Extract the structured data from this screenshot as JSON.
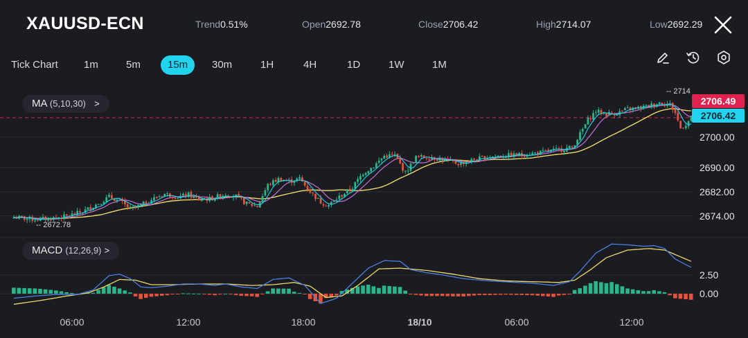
{
  "header": {
    "symbol": "XAUUSD-ECN",
    "stats": [
      {
        "label": "Trend",
        "value": "0.51%"
      },
      {
        "label": "Open",
        "value": "2692.78"
      },
      {
        "label": "Close",
        "value": "2706.42"
      },
      {
        "label": "High",
        "value": "2714.07"
      },
      {
        "label": "Low",
        "value": "2692.29"
      }
    ]
  },
  "timeframes": [
    "Tick Chart",
    "1m",
    "5m",
    "15m",
    "30m",
    "1H",
    "4H",
    "1D",
    "1W",
    "1M"
  ],
  "active_timeframe": "15m",
  "toolbar": {
    "icons": [
      "draw-pencil-icon",
      "history-clock-icon",
      "settings-gear-icon"
    ]
  },
  "indicators": {
    "ma": {
      "name": "MA",
      "params": "(5,10,30)",
      "chevron": ">"
    },
    "macd": {
      "name": "MACD",
      "params": "(12,26,9)",
      "chevron": ">"
    }
  },
  "colors": {
    "up": "#2bb58b",
    "down": "#e5533d",
    "ma5": "#22d3ee",
    "ma10": "#c76fd6",
    "ma30": "#eed96a",
    "macd_line": "#4b7fe0",
    "signal_line": "#eed96a",
    "last_price_bg": "#e0234e",
    "close_price_bg": "#22d3ee",
    "active_tab": "#22d3ee"
  },
  "chart_data": {
    "type": "candlestick",
    "price_axis": {
      "ticks": [
        "2674.00",
        "2682.00",
        "2690.00",
        "2700.00"
      ],
      "ylim": [
        2668,
        2716
      ]
    },
    "macd_axis": {
      "ticks": [
        "0.00",
        "2.50"
      ],
      "ylim": [
        -2.2,
        7.0
      ]
    },
    "time_axis": {
      "ticks": [
        "06:00",
        "12:00",
        "18:00",
        "18/10",
        "06:00",
        "12:00"
      ]
    },
    "price_labels": {
      "last": "2706.49",
      "close": "2706.42"
    },
    "annotations": {
      "low": "2672.78",
      "high": "2714"
    },
    "close_path": [
      [
        0,
        2673.6
      ],
      [
        8,
        2672.8
      ],
      [
        14,
        2673.2
      ],
      [
        20,
        2673.9
      ],
      [
        26,
        2675.4
      ],
      [
        32,
        2678.2
      ],
      [
        36,
        2680.3
      ],
      [
        40,
        2678.9
      ],
      [
        44,
        2676.3
      ],
      [
        48,
        2677.5
      ],
      [
        52,
        2679.4
      ],
      [
        57,
        2681.3
      ],
      [
        62,
        2680.2
      ],
      [
        66,
        2681.0
      ],
      [
        70,
        2679.4
      ],
      [
        74,
        2679.6
      ],
      [
        80,
        2681.2
      ],
      [
        84,
        2680.5
      ],
      [
        88,
        2678.0
      ],
      [
        92,
        2677.2
      ],
      [
        96,
        2684.2
      ],
      [
        100,
        2686.2
      ],
      [
        104,
        2685.4
      ],
      [
        108,
        2686.3
      ],
      [
        112,
        2682.0
      ],
      [
        116,
        2678.5
      ],
      [
        119,
        2677.6
      ],
      [
        123,
        2680.3
      ],
      [
        128,
        2683.4
      ],
      [
        132,
        2688.2
      ],
      [
        136,
        2690.4
      ],
      [
        140,
        2693.8
      ],
      [
        144,
        2694.0
      ],
      [
        148,
        2688.2
      ],
      [
        152,
        2693.4
      ],
      [
        158,
        2693.4
      ],
      [
        164,
        2692.1
      ],
      [
        168,
        2691.3
      ],
      [
        174,
        2692.6
      ],
      [
        180,
        2693.6
      ],
      [
        186,
        2693.9
      ],
      [
        192,
        2694.2
      ],
      [
        198,
        2694.8
      ],
      [
        204,
        2695.6
      ],
      [
        208,
        2696.1
      ],
      [
        211,
        2696.6
      ],
      [
        214,
        2701.0
      ],
      [
        217,
        2705.7
      ],
      [
        220,
        2708.6
      ],
      [
        224,
        2707.6
      ],
      [
        228,
        2708.0
      ],
      [
        232,
        2709.2
      ],
      [
        236,
        2709.6
      ],
      [
        240,
        2710.3
      ],
      [
        244,
        2711.4
      ],
      [
        248,
        2710.8
      ],
      [
        250,
        2708.0
      ],
      [
        252,
        2702.9
      ],
      [
        254,
        2704.2
      ],
      [
        256,
        2706.4
      ]
    ],
    "macd_path": [
      [
        0,
        -0.6
      ],
      [
        8,
        -0.3
      ],
      [
        16,
        -0.1
      ],
      [
        24,
        -0.1
      ],
      [
        30,
        0.5
      ],
      [
        36,
        2.4
      ],
      [
        40,
        2.6
      ],
      [
        44,
        2.0
      ],
      [
        48,
        0.9
      ],
      [
        52,
        0.8
      ],
      [
        58,
        1.0
      ],
      [
        64,
        1.3
      ],
      [
        70,
        1.3
      ],
      [
        76,
        1.1
      ],
      [
        80,
        1.3
      ],
      [
        86,
        0.9
      ],
      [
        92,
        0.7
      ],
      [
        98,
        1.9
      ],
      [
        104,
        2.1
      ],
      [
        110,
        1.1
      ],
      [
        116,
        -1.3
      ],
      [
        122,
        -0.6
      ],
      [
        128,
        1.4
      ],
      [
        134,
        3.4
      ],
      [
        140,
        4.4
      ],
      [
        146,
        4.3
      ],
      [
        150,
        3.2
      ],
      [
        156,
        2.8
      ],
      [
        162,
        2.5
      ],
      [
        170,
        2.0
      ],
      [
        180,
        1.7
      ],
      [
        190,
        1.5
      ],
      [
        196,
        1.4
      ],
      [
        204,
        1.1
      ],
      [
        210,
        1.6
      ],
      [
        214,
        3.0
      ],
      [
        220,
        5.4
      ],
      [
        226,
        6.6
      ],
      [
        232,
        6.5
      ],
      [
        238,
        6.3
      ],
      [
        242,
        6.4
      ],
      [
        246,
        6.0
      ],
      [
        250,
        4.6
      ],
      [
        256,
        3.5
      ]
    ],
    "signal_path": [
      [
        0,
        -1.4
      ],
      [
        10,
        -0.9
      ],
      [
        20,
        -0.3
      ],
      [
        28,
        0.1
      ],
      [
        34,
        0.9
      ],
      [
        40,
        1.9
      ],
      [
        46,
        1.8
      ],
      [
        52,
        1.2
      ],
      [
        60,
        1.2
      ],
      [
        70,
        1.3
      ],
      [
        80,
        1.3
      ],
      [
        90,
        1.1
      ],
      [
        98,
        1.2
      ],
      [
        106,
        1.5
      ],
      [
        112,
        1.0
      ],
      [
        118,
        -0.5
      ],
      [
        124,
        -0.3
      ],
      [
        130,
        1.1
      ],
      [
        138,
        3.3
      ],
      [
        146,
        3.4
      ],
      [
        156,
        3.1
      ],
      [
        166,
        2.6
      ],
      [
        176,
        2.0
      ],
      [
        186,
        1.7
      ],
      [
        196,
        1.6
      ],
      [
        206,
        1.5
      ],
      [
        212,
        1.8
      ],
      [
        218,
        3.2
      ],
      [
        224,
        4.8
      ],
      [
        232,
        5.8
      ],
      [
        240,
        6.0
      ],
      [
        246,
        5.8
      ],
      [
        250,
        5.2
      ],
      [
        256,
        4.3
      ]
    ]
  }
}
